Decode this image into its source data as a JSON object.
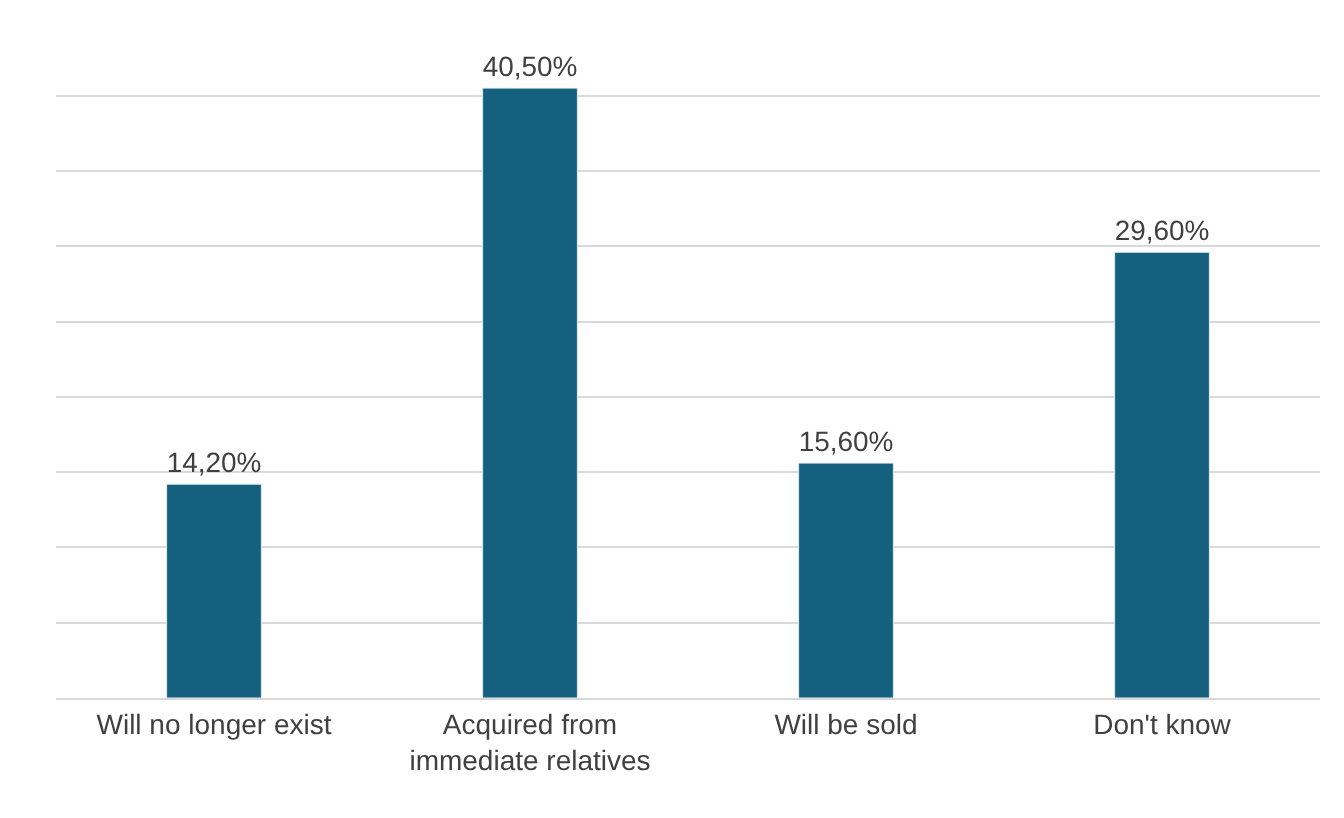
{
  "chart_data": {
    "type": "bar",
    "categories": [
      "Will no longer exist",
      "Acquired from immediate relatives",
      "Will be sold",
      "Don't know"
    ],
    "values": [
      14.2,
      40.5,
      15.6,
      29.6
    ],
    "value_labels": [
      "14,20%",
      "40,50%",
      "15,60%",
      "29,60%"
    ],
    "color": "#16607f",
    "tick_labels": "x",
    "grid": "y"
  }
}
